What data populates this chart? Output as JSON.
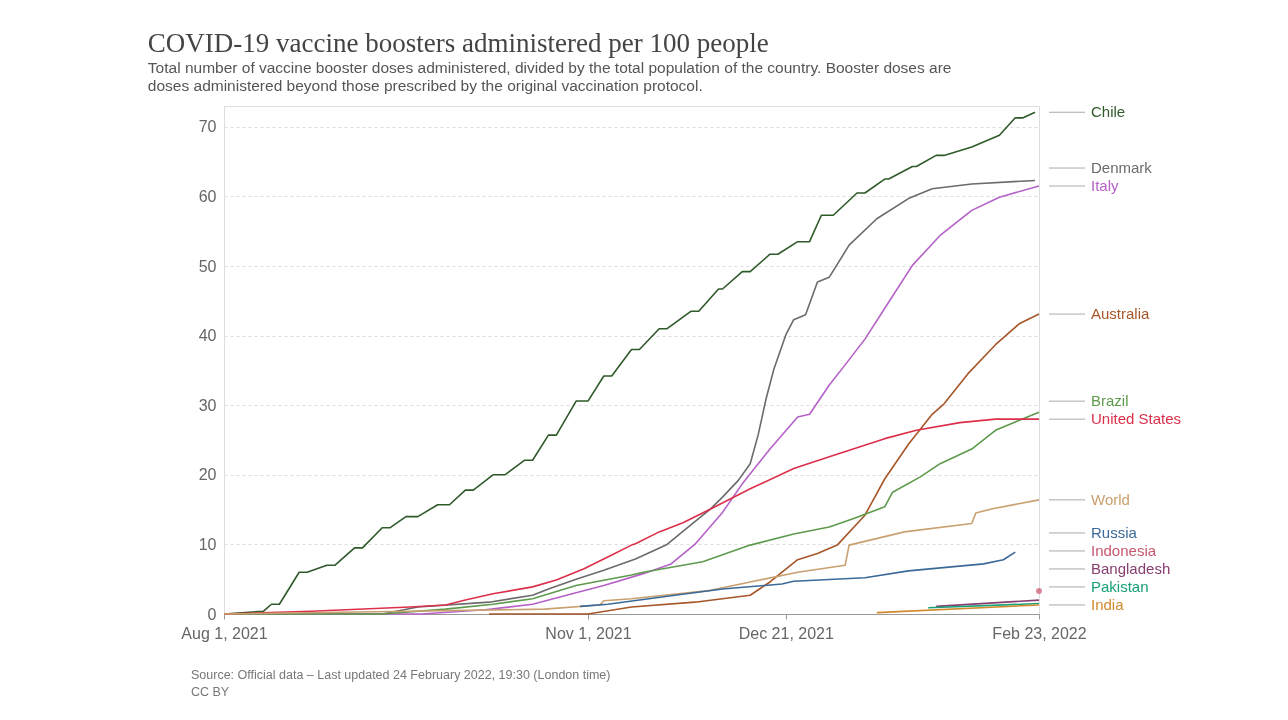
{
  "chart_data": {
    "type": "line",
    "title": "COVID-19 vaccine boosters administered per 100 people",
    "subtitle": "Total number of vaccine booster doses administered, divided by the total population of the country. Booster doses are doses administered beyond those prescribed by the original vaccination protocol.",
    "xlim": [
      "2021-08-01",
      "2022-02-23"
    ],
    "xticks": [
      {
        "value": "2021-08-01",
        "label": "Aug 1, 2021"
      },
      {
        "value": "2021-11-01",
        "label": "Nov 1, 2021"
      },
      {
        "value": "2021-12-21",
        "label": "Dec 21, 2021"
      },
      {
        "value": "2022-02-23",
        "label": "Feb 23, 2022"
      }
    ],
    "ylim": [
      0,
      73
    ],
    "yticks": [
      0,
      10,
      20,
      30,
      40,
      50,
      60,
      70
    ],
    "grid": "y",
    "legend": false,
    "line_style": "solid",
    "series": [
      {
        "name": "Chile",
        "color": "#2f5a2a",
        "x": [
          "2021-08-01",
          "2021-08-11",
          "2021-08-13",
          "2021-08-15",
          "2021-08-20",
          "2021-08-22",
          "2021-08-27",
          "2021-08-29",
          "2021-09-03",
          "2021-09-05",
          "2021-09-10",
          "2021-09-12",
          "2021-09-16",
          "2021-09-19",
          "2021-09-24",
          "2021-09-27",
          "2021-10-01",
          "2021-10-03",
          "2021-10-08",
          "2021-10-11",
          "2021-10-16",
          "2021-10-18",
          "2021-10-22",
          "2021-10-24",
          "2021-10-29",
          "2021-11-01",
          "2021-11-05",
          "2021-11-07",
          "2021-11-12",
          "2021-11-14",
          "2021-11-19",
          "2021-11-21",
          "2021-11-27",
          "2021-11-29",
          "2021-12-04",
          "2021-12-05",
          "2021-12-10",
          "2021-12-12",
          "2021-12-17",
          "2021-12-19",
          "2021-12-24",
          "2021-12-27",
          "2021-12-30",
          "2022-01-02",
          "2022-01-08",
          "2022-01-10",
          "2022-01-15",
          "2022-01-16",
          "2022-01-22",
          "2022-01-23",
          "2022-01-28",
          "2022-01-30",
          "2022-02-06",
          "2022-02-13",
          "2022-02-17",
          "2022-02-19",
          "2022-02-22"
        ],
        "values": [
          0,
          0.4,
          1.4,
          1.4,
          6,
          6,
          7,
          7,
          9.5,
          9.5,
          12.4,
          12.4,
          14,
          14,
          15.7,
          15.7,
          17.8,
          17.8,
          20,
          20,
          22.1,
          22.1,
          25.7,
          25.7,
          30.6,
          30.6,
          34.2,
          34.2,
          38,
          38,
          41,
          41,
          43.5,
          43.5,
          46.7,
          46.7,
          49.2,
          49.2,
          51.7,
          51.7,
          53.5,
          53.5,
          57.3,
          57.3,
          60.5,
          60.5,
          62.5,
          62.5,
          64.3,
          64.3,
          65.9,
          65.9,
          67.1,
          68.8,
          71.3,
          71.3,
          72.1
        ]
      },
      {
        "name": "Denmark",
        "color": "#6b6b6b",
        "x": [
          "2021-08-01",
          "2021-09-10",
          "2021-09-19",
          "2021-10-07",
          "2021-10-18",
          "2021-10-22",
          "2021-10-29",
          "2021-11-05",
          "2021-11-13",
          "2021-11-21",
          "2021-11-27",
          "2021-12-02",
          "2021-12-05",
          "2021-12-09",
          "2021-12-12",
          "2021-12-14",
          "2021-12-16",
          "2021-12-18",
          "2021-12-21",
          "2021-12-23",
          "2021-12-26",
          "2021-12-29",
          "2022-01-01",
          "2022-01-06",
          "2022-01-13",
          "2022-01-21",
          "2022-01-27",
          "2022-02-06",
          "2022-02-22"
        ],
        "values": [
          0,
          0,
          1,
          1.7,
          2.7,
          3.6,
          5,
          6.3,
          7.9,
          10,
          12.8,
          15.1,
          16.8,
          19.2,
          21.6,
          25.7,
          30.9,
          35.2,
          40.1,
          42.3,
          43,
          47.7,
          48.4,
          53,
          56.8,
          59.7,
          61.1,
          61.8,
          62.3
        ]
      },
      {
        "name": "Italy",
        "color": "#b561c7",
        "x": [
          "2021-08-01",
          "2021-09-20",
          "2021-10-06",
          "2021-10-18",
          "2021-10-28",
          "2021-11-05",
          "2021-11-15",
          "2021-11-22",
          "2021-11-28",
          "2021-12-05",
          "2021-12-10",
          "2021-12-17",
          "2021-12-24",
          "2021-12-27",
          "2022-01-01",
          "2022-01-05",
          "2022-01-10",
          "2022-01-16",
          "2022-01-22",
          "2022-01-29",
          "2022-02-06",
          "2022-02-13",
          "2022-02-23"
        ],
        "values": [
          0,
          0,
          0.6,
          1.4,
          2.9,
          4.1,
          5.8,
          7.2,
          10,
          14.6,
          18.7,
          23.7,
          28.3,
          28.7,
          32.9,
          35.8,
          39.5,
          44.8,
          50.1,
          54.4,
          58,
          59.9,
          61.5
        ]
      },
      {
        "name": "Australia",
        "color": "#a65628",
        "x": [
          "2021-10-07",
          "2021-11-01",
          "2021-11-12",
          "2021-11-28",
          "2021-12-12",
          "2021-12-17",
          "2021-12-24",
          "2021-12-29",
          "2022-01-03",
          "2022-01-10",
          "2022-01-15",
          "2022-01-21",
          "2022-01-27",
          "2022-01-30",
          "2022-02-05",
          "2022-02-12",
          "2022-02-18",
          "2022-02-23"
        ],
        "values": [
          0,
          0,
          1,
          1.7,
          2.7,
          4.6,
          7.8,
          8.7,
          9.9,
          14.2,
          19.4,
          24.4,
          28.7,
          30.2,
          34.5,
          38.7,
          41.7,
          43.1
        ]
      },
      {
        "name": "Brazil",
        "color": "#5e9a4c",
        "x": [
          "2021-08-01",
          "2021-09-10",
          "2021-09-26",
          "2021-10-08",
          "2021-10-18",
          "2021-10-29",
          "2021-11-12",
          "2021-11-15",
          "2021-11-30",
          "2021-12-12",
          "2021-12-23",
          "2022-01-01",
          "2022-01-07",
          "2022-01-15",
          "2022-01-17",
          "2022-01-24",
          "2022-01-29",
          "2022-02-06",
          "2022-02-12",
          "2022-02-17",
          "2022-02-23"
        ],
        "values": [
          0,
          0,
          0.7,
          1.4,
          2.2,
          4.1,
          5.6,
          6,
          7.5,
          9.9,
          11.5,
          12.5,
          13.7,
          15.4,
          17.5,
          19.7,
          21.6,
          23.7,
          26.4,
          27.6,
          29
        ]
      },
      {
        "name": "United States",
        "color": "#dc2f4a",
        "x": [
          "2021-08-01",
          "2021-08-23",
          "2021-09-17",
          "2021-09-26",
          "2021-10-01",
          "2021-10-08",
          "2021-10-18",
          "2021-10-24",
          "2021-10-31",
          "2021-11-06",
          "2021-11-12",
          "2021-11-13",
          "2021-11-19",
          "2021-11-25",
          "2021-12-02",
          "2021-12-12",
          "2021-12-23",
          "2022-01-01",
          "2022-01-15",
          "2022-01-23",
          "2022-02-03",
          "2022-02-12",
          "2022-02-23"
        ],
        "values": [
          0,
          0.4,
          1,
          1.3,
          2,
          2.9,
          3.9,
          4.9,
          6.5,
          8.2,
          9.9,
          10.1,
          11.8,
          13.1,
          15.1,
          18,
          20.9,
          22.6,
          25.2,
          26.4,
          27.5,
          28,
          28
        ]
      },
      {
        "name": "World",
        "color": "#c9a06f",
        "x": [
          "2021-08-01",
          "2021-09-17",
          "2021-10-21",
          "2021-11-04",
          "2021-11-05",
          "2021-11-12",
          "2021-12-02",
          "2021-12-12",
          "2021-12-24",
          "2022-01-05",
          "2022-01-06",
          "2022-01-20",
          "2022-02-06",
          "2022-02-07",
          "2022-02-11",
          "2022-02-23"
        ],
        "values": [
          0,
          0.4,
          0.7,
          1.3,
          1.9,
          2.2,
          3.4,
          4.6,
          6,
          7,
          9.9,
          11.8,
          13,
          14.5,
          15.1,
          16.4
        ]
      },
      {
        "name": "Russia",
        "color": "#3b6a99",
        "x": [
          "2021-10-30",
          "2021-11-06",
          "2021-11-23",
          "2021-12-05",
          "2021-12-20",
          "2021-12-23",
          "2022-01-10",
          "2022-01-21",
          "2022-02-09",
          "2022-02-14",
          "2022-02-17"
        ],
        "values": [
          1.1,
          1.4,
          2.7,
          3.6,
          4.3,
          4.7,
          5.2,
          6.2,
          7.2,
          7.8,
          8.9
        ]
      },
      {
        "name": "Indonesia",
        "color": "#c8566e",
        "type": "scatter",
        "marker": "circle",
        "x": [
          "2022-02-23"
        ],
        "values": [
          3.3
        ]
      },
      {
        "name": "Bangladesh",
        "color": "#883e71",
        "x": [
          "2022-01-28",
          "2022-02-23"
        ],
        "values": [
          1.1,
          2
        ]
      },
      {
        "name": "Pakistan",
        "color": "#18a078",
        "x": [
          "2022-01-26",
          "2022-02-23"
        ],
        "values": [
          0.9,
          1.5
        ]
      },
      {
        "name": "India",
        "color": "#d08a2d",
        "x": [
          "2022-01-13",
          "2022-02-23"
        ],
        "values": [
          0.2,
          1.3
        ]
      }
    ],
    "annotations": [
      "Source: Official data – Last updated 24 February 2022, 19:30 (London time)",
      "CC BY"
    ]
  }
}
